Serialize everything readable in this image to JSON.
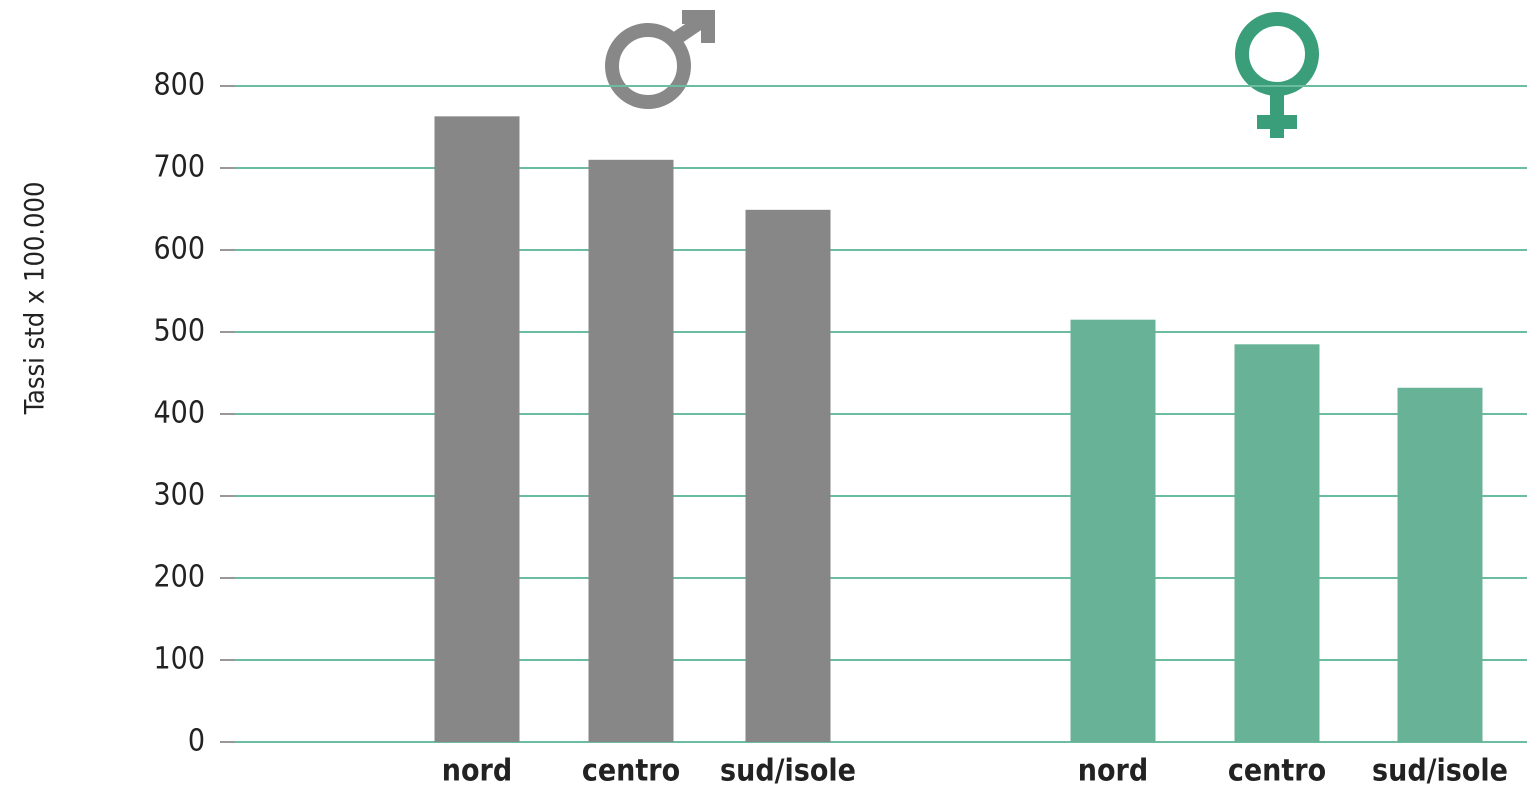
{
  "chart_data": {
    "type": "bar",
    "y_label": "Tassi std x 100.000",
    "categories": [
      "nord",
      "centro",
      "sud/isole"
    ],
    "series": [
      {
        "color": "#878787",
        "values": [
          763,
          710,
          649
        ]
      },
      {
        "color": "#68b398",
        "values": [
          515,
          485,
          432
        ]
      }
    ],
    "ylim": [
      0,
      800
    ],
    "yticks": [
      0,
      100,
      200,
      300,
      400,
      500,
      600,
      700,
      800
    ],
    "grid": true,
    "grid_color": "#6cbda0"
  }
}
